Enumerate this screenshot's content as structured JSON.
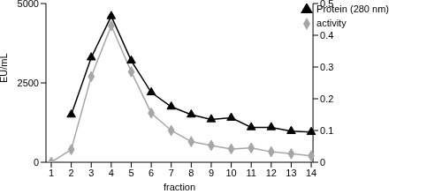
{
  "chart_data": {
    "type": "line",
    "categories": [
      "1",
      "2",
      "3",
      "4",
      "5",
      "6",
      "7",
      "8",
      "9",
      "10",
      "11",
      "12",
      "13",
      "14"
    ],
    "x_label": "fraction",
    "y_label": "EU/mL",
    "ylim": [
      0,
      5000
    ],
    "yticks": [
      0,
      2500,
      5000
    ],
    "y2lim": [
      0,
      0.5
    ],
    "y2ticks": [
      0,
      0.1,
      0.2,
      0.3,
      0.4,
      0.5
    ],
    "grid": false,
    "legend": "upper right",
    "series": [
      {
        "name": "activity",
        "color": "#a6a6a6",
        "marker": "diamond",
        "values": [
          0,
          400,
          2700,
          4300,
          2850,
          1550,
          1000,
          650,
          530,
          420,
          450,
          330,
          270,
          200
        ]
      },
      {
        "name": "Protein (280 nm)",
        "color": "#000000",
        "marker": "triangle",
        "axis": "y2",
        "values": [
          null,
          0.15,
          0.33,
          0.46,
          0.32,
          0.22,
          0.175,
          0.15,
          0.135,
          0.14,
          0.11,
          0.11,
          0.098,
          0.095
        ]
      }
    ]
  }
}
